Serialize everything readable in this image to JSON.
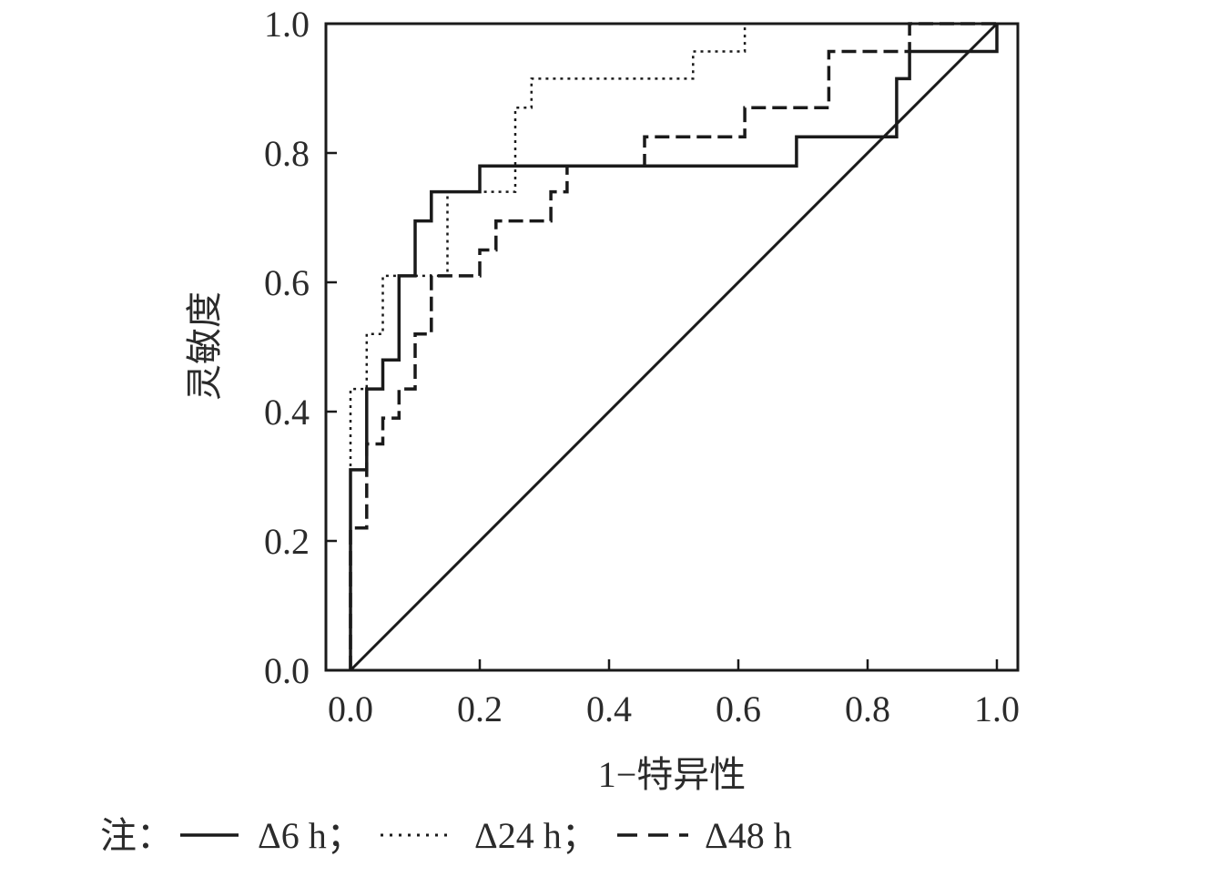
{
  "chart_data": {
    "type": "line",
    "xlabel": "1−特异性",
    "ylabel": "灵敏度",
    "xlim": [
      0,
      1
    ],
    "ylim": [
      0,
      1
    ],
    "xticks": [
      "0.0",
      "0.2",
      "0.4",
      "0.6",
      "0.8",
      "1.0"
    ],
    "yticks": [
      "0.0",
      "0.2",
      "0.4",
      "0.6",
      "0.8",
      "1.0"
    ],
    "grid": false,
    "legend_position": "bottom",
    "series": [
      {
        "name": "Δ6 h",
        "style": "solid",
        "x": [
          0,
          0,
          0.025,
          0.025,
          0.05,
          0.05,
          0.075,
          0.075,
          0.1,
          0.1,
          0.125,
          0.125,
          0.2,
          0.2,
          0.69,
          0.69,
          0.845,
          0.845,
          0.865,
          0.865,
          1.0,
          1.0
        ],
        "y": [
          0,
          0.31,
          0.31,
          0.435,
          0.435,
          0.48,
          0.48,
          0.61,
          0.61,
          0.695,
          0.695,
          0.74,
          0.74,
          0.78,
          0.78,
          0.825,
          0.825,
          0.915,
          0.915,
          0.957,
          0.957,
          1.0
        ]
      },
      {
        "name": "Δ24 h",
        "style": "dotted",
        "x": [
          0,
          0,
          0.025,
          0.025,
          0.05,
          0.05,
          0.15,
          0.15,
          0.255,
          0.255,
          0.28,
          0.28,
          0.53,
          0.53,
          0.61,
          0.61,
          1.0
        ],
        "y": [
          0,
          0.435,
          0.435,
          0.52,
          0.52,
          0.61,
          0.61,
          0.74,
          0.74,
          0.87,
          0.87,
          0.915,
          0.915,
          0.957,
          0.957,
          1.0,
          1.0
        ]
      },
      {
        "name": "Δ48 h",
        "style": "dashed",
        "x": [
          0,
          0,
          0.025,
          0.025,
          0.05,
          0.05,
          0.075,
          0.075,
          0.1,
          0.1,
          0.125,
          0.125,
          0.2,
          0.2,
          0.225,
          0.225,
          0.31,
          0.31,
          0.335,
          0.335,
          0.455,
          0.455,
          0.61,
          0.61,
          0.74,
          0.74,
          0.865,
          0.865,
          1.0
        ],
        "y": [
          0,
          0.22,
          0.22,
          0.35,
          0.35,
          0.39,
          0.39,
          0.435,
          0.435,
          0.52,
          0.52,
          0.61,
          0.61,
          0.65,
          0.65,
          0.695,
          0.695,
          0.74,
          0.74,
          0.78,
          0.78,
          0.825,
          0.825,
          0.87,
          0.87,
          0.957,
          0.957,
          1.0,
          1.0
        ]
      },
      {
        "name": "",
        "style": "reference",
        "x": [
          0,
          1
        ],
        "y": [
          0,
          1
        ]
      }
    ]
  },
  "note": {
    "prefix": "注：",
    "items": [
      {
        "label": "Δ6 h；",
        "style": "solid"
      },
      {
        "label": "Δ24 h；",
        "style": "dotted"
      },
      {
        "label": "Δ48 h",
        "style": "dashed"
      }
    ]
  }
}
